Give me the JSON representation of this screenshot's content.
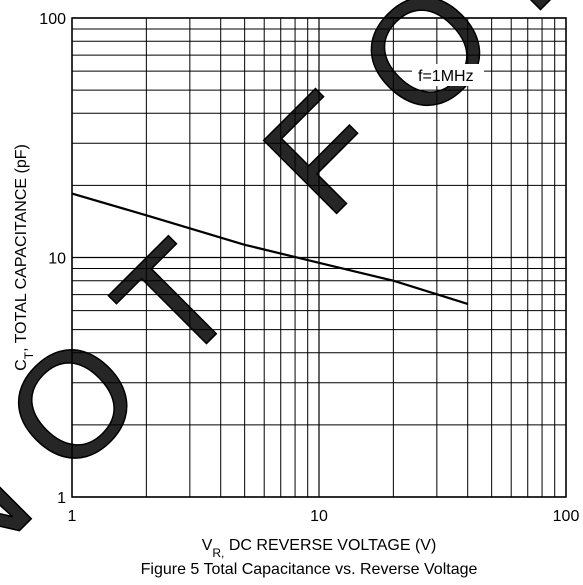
{
  "chart_data": {
    "type": "line",
    "watermark": "NOT FOR",
    "annotation": "f=1MHz",
    "caption": "Figure 5 Total Capacitance vs. Reverse Voltage",
    "xlabel": {
      "main": "V",
      "sub": "R,",
      "rest": " DC REVERSE VOLTAGE (V)"
    },
    "ylabel": {
      "main": "C",
      "sub": "T",
      "rest": ", TOTAL CAPACITANCE (pF)"
    },
    "x": [
      1,
      2,
      5,
      10,
      20,
      40
    ],
    "series": [
      {
        "name": null,
        "color": "#000000",
        "values": [
          18.5,
          15,
          11.3,
          9.5,
          8,
          6.4
        ]
      }
    ],
    "xlim": [
      1,
      100
    ],
    "ylim": [
      1,
      100
    ],
    "xticks": [
      1,
      10,
      100
    ],
    "yticks": [
      1,
      10,
      100
    ],
    "xscale": "log",
    "yscale": "log",
    "grid": true,
    "minor_grid": true
  }
}
